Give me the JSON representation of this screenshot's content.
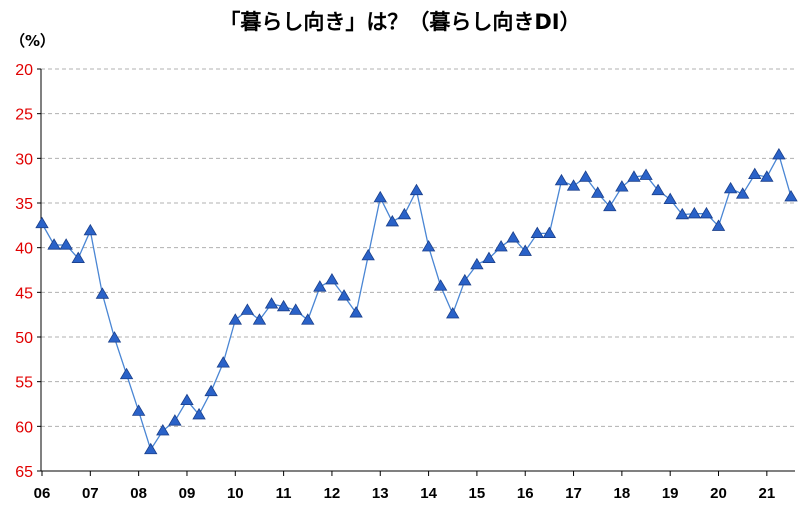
{
  "title": "「暮らし向き」は？（暮らし向きDI）",
  "ylabel": "（%）",
  "chart_data": {
    "type": "line",
    "title": "「暮らし向き」は？（暮らし向きDI）",
    "ylabel": "（%）",
    "xlabel": "",
    "ylim": [
      20,
      65
    ],
    "y_inverted": true,
    "yticks": [
      "20",
      "25",
      "30",
      "35",
      "40",
      "45",
      "50",
      "55",
      "60",
      "65"
    ],
    "xticks": [
      "06",
      "07",
      "08",
      "09",
      "10",
      "11",
      "12",
      "13",
      "14",
      "15",
      "16",
      "17",
      "18",
      "19",
      "20",
      "21"
    ],
    "grid": true,
    "marker": "triangle",
    "line_color": "#4a86d4",
    "marker_color": "#2a62c8",
    "series": [
      {
        "values": [
          37.3,
          39.7,
          39.7,
          41.2,
          38.1,
          45.2,
          50.1,
          54.2,
          58.3,
          62.6,
          60.5,
          59.4,
          57.1,
          58.7,
          56.1,
          52.9,
          48.1,
          47.0,
          48.1,
          46.3,
          46.6,
          47.0,
          48.1,
          44.4,
          43.6,
          45.4,
          47.3,
          40.9,
          34.4,
          37.1,
          36.3,
          33.6,
          39.9,
          44.3,
          47.4,
          43.7,
          41.9,
          41.2,
          39.9,
          38.9,
          40.4,
          38.4,
          38.4,
          32.5,
          33.1,
          32.1,
          33.9,
          35.4,
          33.2,
          32.1,
          31.9,
          33.6,
          34.6,
          36.3,
          36.2,
          36.2,
          37.6,
          33.4,
          34.0,
          31.8,
          32.1,
          29.6,
          34.3
        ]
      }
    ]
  }
}
